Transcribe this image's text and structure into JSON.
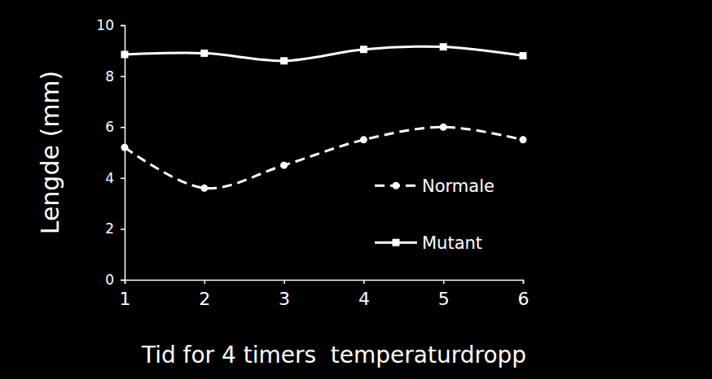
{
  "chart_data": {
    "type": "line",
    "x_label": "Tid for 4 timers  temperaturdropp",
    "y_label": "Lengde (mm)",
    "x": [
      1,
      2,
      3,
      4,
      5,
      6
    ],
    "xlim": [
      1,
      6
    ],
    "xticks": [
      1,
      2,
      3,
      4,
      5,
      6
    ],
    "ylim": [
      0,
      10
    ],
    "yticks": [
      0,
      2,
      4,
      6,
      8,
      10
    ],
    "grid": false,
    "legend": "right",
    "series": [
      {
        "name": "Normale",
        "color": "#ffffff",
        "marker": "circle",
        "line_style": "dashed",
        "values": [
          5.2,
          3.6,
          4.5,
          5.5,
          6.0,
          5.5
        ]
      },
      {
        "name": "Mutant",
        "color": "#ffffff",
        "marker": "square",
        "line_style": "solid",
        "values": [
          8.85,
          8.9,
          8.6,
          9.05,
          9.15,
          8.8
        ]
      }
    ]
  }
}
